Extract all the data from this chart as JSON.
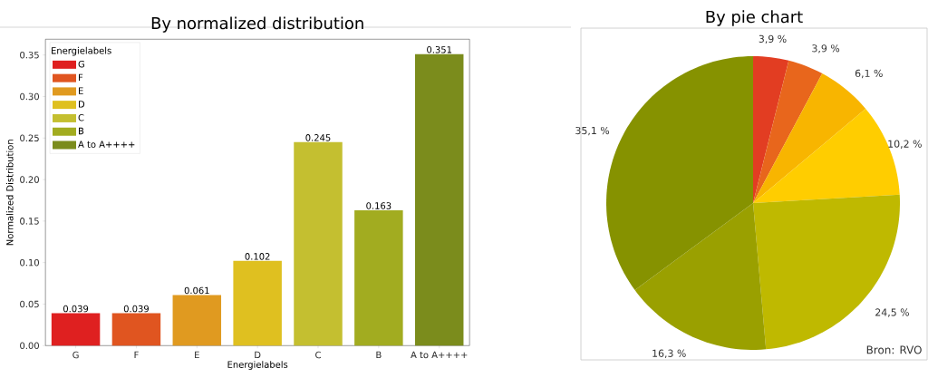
{
  "chart_data": [
    {
      "type": "bar",
      "title": "By normalized distribution",
      "xlabel": "Energielabels",
      "ylabel": "Normalized Distribution",
      "legend_title": "Energielabels",
      "legend": "top left",
      "categories": [
        "G",
        "F",
        "E",
        "D",
        "C",
        "B",
        "A to A++++"
      ],
      "series": [
        {
          "name": "G",
          "color": "#df2020",
          "values": [
            0.039,
            null,
            null,
            null,
            null,
            null,
            null
          ],
          "value_labels": [
            "0.039",
            null,
            null,
            null,
            null,
            null,
            null
          ]
        },
        {
          "name": "F",
          "color": "#e05520",
          "values": [
            null,
            0.039,
            null,
            null,
            null,
            null,
            null
          ],
          "value_labels": [
            null,
            "0.039",
            null,
            null,
            null,
            null,
            null
          ]
        },
        {
          "name": "E",
          "color": "#e09a20",
          "values": [
            null,
            null,
            0.061,
            null,
            null,
            null,
            null
          ],
          "value_labels": [
            null,
            null,
            "0.061",
            null,
            null,
            null,
            null
          ]
        },
        {
          "name": "D",
          "color": "#dfc020",
          "values": [
            null,
            null,
            null,
            0.102,
            null,
            null,
            null
          ],
          "value_labels": [
            null,
            null,
            null,
            "0.102",
            null,
            null,
            null
          ]
        },
        {
          "name": "C",
          "color": "#c4bf30",
          "values": [
            null,
            null,
            null,
            null,
            0.245,
            null,
            null
          ],
          "value_labels": [
            null,
            null,
            null,
            null,
            "0.245",
            null,
            null
          ]
        },
        {
          "name": "B",
          "color": "#a2ac20",
          "values": [
            null,
            null,
            null,
            null,
            null,
            0.163,
            null
          ],
          "value_labels": [
            null,
            null,
            null,
            null,
            null,
            "0.163",
            null
          ]
        },
        {
          "name": "A to A++++",
          "color": "#7b8c1c",
          "values": [
            null,
            null,
            null,
            null,
            null,
            null,
            0.351
          ],
          "value_labels": [
            null,
            null,
            null,
            null,
            null,
            null,
            "0.351"
          ]
        }
      ],
      "ylim": [
        0,
        0.369
      ],
      "yticks": [
        {
          "value": 0,
          "label": "0.00"
        },
        {
          "value": 0.05,
          "label": "0.05"
        },
        {
          "value": 0.1,
          "label": "0.10"
        },
        {
          "value": 0.15,
          "label": "0.15"
        },
        {
          "value": 0.2,
          "label": "0.20"
        },
        {
          "value": 0.25,
          "label": "0.25"
        },
        {
          "value": 0.3,
          "label": "0.30"
        },
        {
          "value": 0.35,
          "label": "0.35"
        }
      ]
    },
    {
      "type": "pie",
      "title": "By pie chart",
      "categories": [
        null,
        null,
        null,
        null,
        null,
        null,
        null
      ],
      "values": [
        3.9,
        3.9,
        6.1,
        10.2,
        24.5,
        16.3,
        35.1
      ],
      "value_labels": [
        "3,9 %",
        "3,9 %",
        "6,1 %",
        "10,2 %",
        "24,5 %",
        "16,3 %",
        "35,1 %"
      ],
      "colors": [
        "#e23d22",
        "#e8661c",
        "#f8b500",
        "#ffcd00",
        "#bfb900",
        "#9aa000",
        "#869200"
      ],
      "annotations": [
        "Bron: RVO"
      ]
    }
  ]
}
